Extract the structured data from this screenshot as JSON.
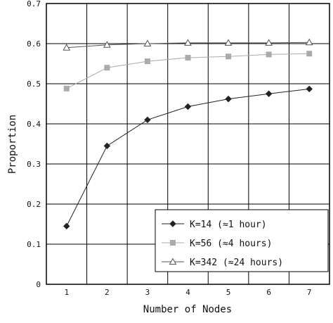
{
  "chart_data": {
    "type": "line",
    "xlabel": "Number of Nodes",
    "ylabel": "Proportion",
    "x": [
      1,
      2,
      3,
      4,
      5,
      6,
      7
    ],
    "xlim": [
      0.5,
      7.5
    ],
    "ylim": [
      0,
      0.7
    ],
    "xticks": [
      "1",
      "2",
      "3",
      "4",
      "5",
      "6",
      "7"
    ],
    "yticks": [
      "0",
      "0.1",
      "0.2",
      "0.3",
      "0.4",
      "0.5",
      "0.6",
      "0.7"
    ],
    "grid": true,
    "legend_position": "bottom-right",
    "series": [
      {
        "name": "K=14 (≈1 hour)",
        "marker": "diamond",
        "color": "#222222",
        "values": [
          0.145,
          0.345,
          0.41,
          0.443,
          0.462,
          0.475,
          0.487
        ]
      },
      {
        "name": "K=56 (≈4 hours)",
        "marker": "square",
        "color": "#aaaaaa",
        "values": [
          0.488,
          0.54,
          0.556,
          0.565,
          0.568,
          0.573,
          0.575
        ]
      },
      {
        "name": "K=342 (≈24 hours)",
        "marker": "triangle",
        "color": "#555555",
        "values": [
          0.59,
          0.597,
          0.6,
          0.602,
          0.602,
          0.602,
          0.603
        ]
      }
    ]
  }
}
